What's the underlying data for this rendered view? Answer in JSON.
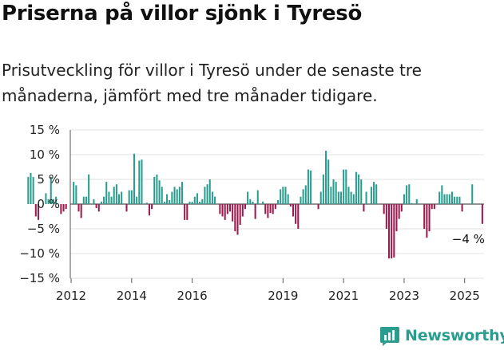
{
  "title": "Priserna på villor sjönk i Tyresö",
  "subtitle": "Prisutveckling för villor i Tyresö under de senaste tre månaderna, jämfört med tre månader tidigare.",
  "brand": "Newsworthy",
  "colors": {
    "positive": "#2a9d8f",
    "negative": "#9b1b4e",
    "grid": "#e0e0e0",
    "axis": "#555555",
    "logo": "#2a9d8f"
  },
  "chart_data": {
    "type": "bar",
    "x_start": "2012-01",
    "x_end": "2025-08",
    "ylim": [
      -15,
      15
    ],
    "yticks": [
      15,
      10,
      5,
      0,
      -5,
      -10,
      -15
    ],
    "ytick_labels": [
      "15 %",
      "10 %",
      "5 %",
      "0 %",
      "−5 %",
      "−10 %",
      "−15 %"
    ],
    "xticks": [
      "2012",
      "2014",
      "2016",
      "2019",
      "2021",
      "2023",
      "2025"
    ],
    "grid": true,
    "annotation": "−4 %",
    "values": [
      5.5,
      6.3,
      5.5,
      -2.5,
      -3.2,
      0,
      0,
      2.2,
      1.0,
      5.5,
      1.0,
      1.5,
      0,
      -2.0,
      -1.5,
      -1.0,
      0,
      0,
      4.5,
      3.8,
      -1.5,
      -2.8,
      1.5,
      1.5,
      6.0,
      0,
      1.0,
      -0.8,
      -1.5,
      0.5,
      1.5,
      4.5,
      2.5,
      1.5,
      3.5,
      4.0,
      2.0,
      2.5,
      0,
      -1.5,
      2.8,
      2.8,
      10.2,
      1.5,
      8.8,
      9.0,
      0,
      0.3,
      -2.3,
      -1.0,
      5.5,
      6.0,
      4.8,
      3.5,
      0.5,
      2.0,
      0.8,
      2.5,
      3.5,
      3.0,
      3.5,
      4.5,
      -3.2,
      -3.2,
      0.5,
      0.5,
      1.5,
      2.2,
      0.5,
      1.0,
      3.5,
      4.0,
      5.0,
      2.5,
      1.5,
      0,
      -2.0,
      -2.5,
      -3.2,
      -2.0,
      -1.5,
      -3.5,
      -5.5,
      -6.2,
      -4.2,
      -2.5,
      -1.0,
      2.5,
      1.0,
      0.5,
      -3.0,
      2.8,
      0,
      0.5,
      -2.0,
      -2.8,
      -1.8,
      -2.0,
      -1.0,
      0.8,
      3.0,
      3.5,
      3.5,
      2.0,
      -0.5,
      -2.5,
      -4.0,
      -5.0,
      1.5,
      3.0,
      3.8,
      7.0,
      6.8,
      0,
      0,
      -1.0,
      2.5,
      6.0,
      10.8,
      9.0,
      3.5,
      5.0,
      4.5,
      2.5,
      2.5,
      7.0,
      7.0,
      3.5,
      2.5,
      2.0,
      6.5,
      6.0,
      5.0,
      -1.5,
      2.5,
      0,
      3.5,
      4.5,
      4.0,
      0,
      0,
      -2.0,
      -5.0,
      -11.0,
      -11.0,
      -10.8,
      -5.5,
      -3.0,
      -1.5,
      2.0,
      3.8,
      4.0,
      0.2,
      0,
      1.0,
      0,
      0,
      -5.0,
      -6.8,
      -5.5,
      -1.0,
      -1.0,
      0,
      2.5,
      3.8,
      2.0,
      2.0,
      2.0,
      2.5,
      1.5,
      1.5,
      1.5,
      -1.5,
      0,
      0,
      0,
      4.0,
      0,
      0,
      0,
      -4.0
    ]
  }
}
